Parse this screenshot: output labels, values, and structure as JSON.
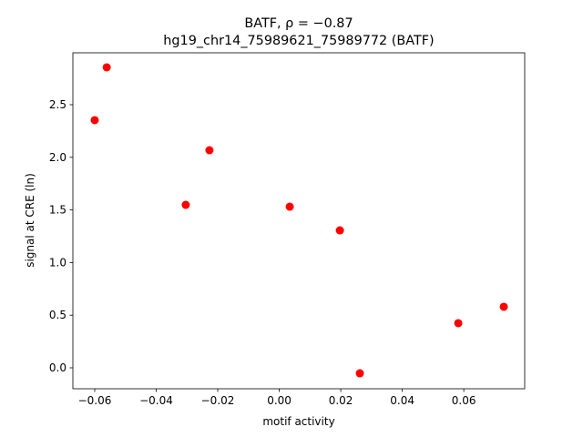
{
  "chart_data": {
    "type": "scatter",
    "title": "BATF, ρ = −0.87",
    "subtitle": "hg19_chr14_75989621_75989772 (BATF)",
    "x_label": "motif activity",
    "y_label": "signal at CRE (ln)",
    "color": "#ff0000",
    "x": [
      -0.06,
      -0.0561,
      -0.0304,
      -0.0227,
      0.0034,
      0.0197,
      0.0262,
      0.0582,
      0.073
    ],
    "values": [
      2.353,
      2.855,
      1.548,
      2.067,
      1.531,
      1.306,
      -0.052,
      0.424,
      0.58
    ],
    "xlim": [
      -0.0671,
      0.0798
    ],
    "ylim": [
      -0.199,
      2.993
    ],
    "xticks": [
      {
        "value": -0.06,
        "label": "−0.06"
      },
      {
        "value": -0.04,
        "label": "−0.04"
      },
      {
        "value": -0.02,
        "label": "−0.02"
      },
      {
        "value": 0,
        "label": "0.00"
      },
      0.02,
      0.04,
      0.06
    ],
    "yticks": [
      {
        "value": 0,
        "label": "0.0"
      },
      0.5,
      {
        "value": 1,
        "label": "1.0"
      },
      1.5,
      {
        "value": 2,
        "label": "2.0"
      },
      2.5
    ],
    "grid": false
  }
}
